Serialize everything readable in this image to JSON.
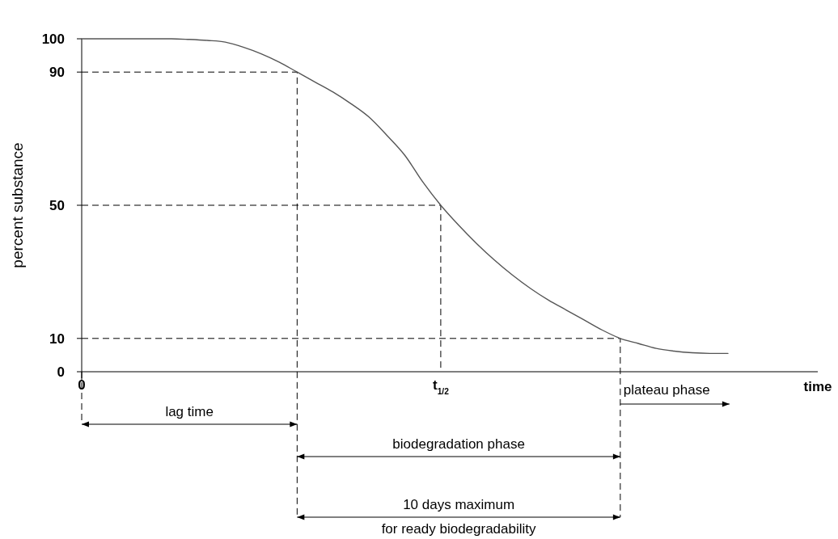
{
  "chart_data": {
    "type": "line",
    "xlabel": "time",
    "ylabel": "percent substance",
    "categories": [
      "0",
      null,
      null,
      null,
      null,
      null,
      null,
      null,
      null,
      null,
      null,
      null,
      null,
      null,
      null,
      null,
      null,
      null,
      null,
      null,
      "t$_{1/2}$",
      null,
      null,
      null,
      null,
      null,
      null,
      null,
      null,
      null,
      null,
      null,
      null,
      null,
      null,
      null,
      null,
      null,
      null,
      null,
      null,
      null
    ],
    "series": [
      {
        "color": "#555555",
        "values": [
          100,
          100,
          100,
          100,
          100,
          100,
          99.8,
          99.5,
          99,
          97.5,
          95.5,
          93,
          90,
          87,
          84,
          80.5,
          76.5,
          71,
          65,
          57,
          50,
          44,
          38.5,
          33.5,
          29,
          25,
          21.5,
          18.5,
          15.5,
          12.5,
          10,
          8.5,
          7,
          6.2,
          5.7,
          5.5,
          5.5,
          null,
          null,
          null,
          null,
          null
        ]
      }
    ],
    "ylim": [
      0,
      100
    ],
    "yticks": [
      0,
      10,
      50,
      90,
      100
    ],
    "ref_lines": [
      {
        "axis": "y",
        "value": 90,
        "line_style": "dashed"
      },
      {
        "axis": "y",
        "value": 50,
        "line_style": "dashed"
      },
      {
        "axis": "y",
        "value": 10,
        "line_style": "dashed"
      }
    ],
    "annotations": [
      "lag time",
      "biodegradation phase",
      "10 days maximum",
      "for ready biodegradability",
      "plateau phase"
    ],
    "grid": false,
    "marker": "none",
    "line_style": "solid"
  }
}
